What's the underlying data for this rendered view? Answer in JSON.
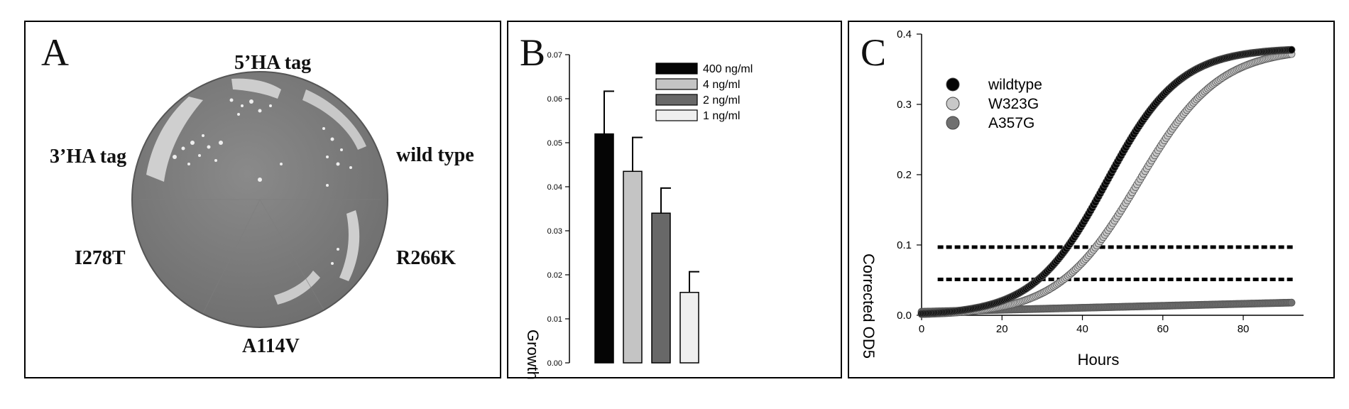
{
  "panelA": {
    "label": "A",
    "plate_labels": [
      "5’HA tag",
      "3’HA tag",
      "wild type",
      "I278T",
      "R266K",
      "A114V"
    ]
  },
  "panelB": {
    "label": "B",
    "ylabel": "Growth"
  },
  "panelC": {
    "label": "C",
    "xlabel": "Hours",
    "ylabel": "Corrected OD5"
  },
  "chart_data": [
    {
      "type": "bar",
      "panel": "B",
      "series": [
        {
          "name": "400 ng/ml",
          "value": 0.052,
          "error": 0.0097,
          "color": "#050505"
        },
        {
          "name": "4 ng/ml",
          "value": 0.0435,
          "error": 0.0077,
          "color": "#c4c4c4"
        },
        {
          "name": "2 ng/ml",
          "value": 0.034,
          "error": 0.0057,
          "color": "#686868"
        },
        {
          "name": "1 ng/ml",
          "value": 0.016,
          "error": 0.0047,
          "color": "#efefef"
        }
      ],
      "ylabel": "Growth",
      "ylim": [
        0,
        0.07
      ],
      "yticks": [
        "0.00",
        "0.01",
        "0.02",
        "0.03",
        "0.04",
        "0.05",
        "0.06",
        "0.07"
      ],
      "legend": "top-right"
    },
    {
      "type": "scatter",
      "panel": "C",
      "xlabel": "Hours",
      "ylabel": "Corrected OD5",
      "xlim": [
        0,
        95
      ],
      "ylim": [
        0,
        0.4
      ],
      "xticks": [
        "0",
        "20",
        "40",
        "60",
        "80"
      ],
      "yticks": [
        "0.0",
        "0.1",
        "0.2",
        "0.3",
        "0.4"
      ],
      "series": [
        {
          "name": "wildtype",
          "color": "#050505",
          "model": "logistic",
          "params": {
            "ymax": 0.38,
            "x50": 46,
            "k": 0.11,
            "x0": 0,
            "xend": 92
          }
        },
        {
          "name": "W323G",
          "color": "#c8c8c8",
          "model": "logistic",
          "params": {
            "ymax": 0.38,
            "x50": 54,
            "k": 0.1,
            "x0": 0,
            "xend": 92
          }
        },
        {
          "name": "A357G",
          "color": "#707070",
          "model": "linear",
          "params": {
            "y0": 0.005,
            "yend": 0.018,
            "x0": 0,
            "xend": 92
          }
        }
      ],
      "thresholds": [
        0.097,
        0.051
      ],
      "legend": "top-left"
    }
  ]
}
